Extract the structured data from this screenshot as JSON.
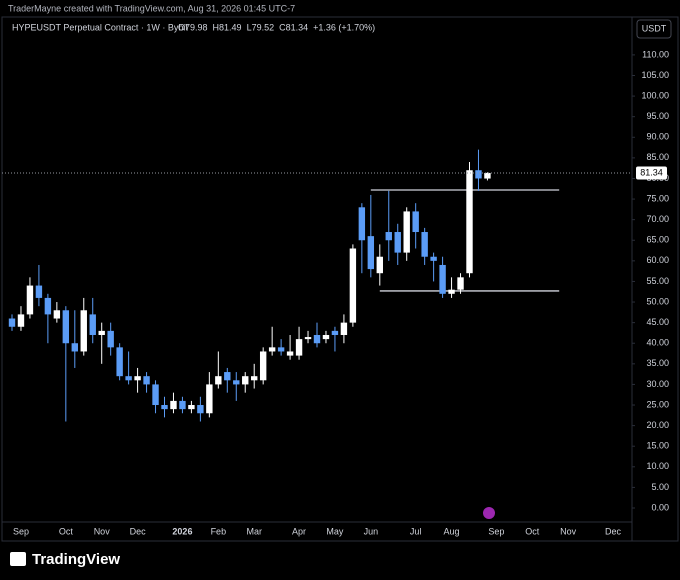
{
  "header": {
    "credit": "TraderMayne created with TradingView.com, Aug 31, 2026 01:45 UTC-7",
    "brand": "TradingView"
  },
  "chart_data": {
    "type": "candlestick",
    "title": "HYPEUSDT Perpetual Contract · 1W · Bybit",
    "ohlc_labels": [
      "O79.98",
      "H81.49",
      "L79.52",
      "C81.34",
      "+1.36 (+1.70%)"
    ],
    "currency": "USDT",
    "last_price": 81.34,
    "categories": [
      null,
      "Sep",
      null,
      null,
      null,
      null,
      "Oct",
      null,
      null,
      null,
      "Nov",
      null,
      null,
      null,
      "Dec",
      null,
      null,
      null,
      null,
      "2026",
      null,
      null,
      null,
      "Feb",
      null,
      null,
      null,
      "Mar",
      null,
      null,
      null,
      null,
      "Apr",
      null,
      null,
      null,
      "May",
      null,
      null,
      null,
      "Jun",
      null,
      null,
      null,
      null,
      "Jul",
      null,
      null,
      null,
      "Aug",
      null,
      null,
      null,
      null,
      "Sep",
      null,
      null,
      null,
      "Oct",
      null,
      null,
      null,
      "Nov",
      null,
      null,
      null,
      null,
      "Dec",
      null
    ],
    "open": [
      46,
      44,
      47,
      54,
      51,
      46,
      48,
      40,
      38,
      47,
      42,
      43,
      39,
      32,
      31,
      32,
      30,
      25,
      24,
      26,
      24,
      25,
      23,
      30,
      33,
      31,
      30,
      31,
      31,
      38,
      39,
      37,
      37,
      41,
      42,
      41,
      43,
      42,
      45,
      73,
      66,
      57,
      67,
      67,
      62,
      72,
      67,
      61,
      59,
      52,
      53,
      57,
      82,
      79.98,
      null,
      null,
      null,
      null,
      null,
      null,
      null,
      null,
      null,
      null,
      null,
      null,
      null,
      null,
      null
    ],
    "high": [
      47,
      49,
      56,
      59,
      52,
      50,
      49,
      48,
      51,
      51,
      45,
      45,
      40,
      38,
      34,
      33,
      31,
      27,
      28,
      27,
      26,
      27,
      33,
      38,
      34,
      33,
      33,
      35,
      39,
      44,
      41,
      42,
      44,
      43,
      45,
      43,
      44,
      47,
      64,
      74,
      76,
      64,
      77,
      69,
      73,
      74,
      68,
      62,
      61,
      56,
      57,
      84,
      87,
      81.49,
      null,
      null,
      null,
      null,
      null,
      null,
      null,
      null,
      null,
      null,
      null,
      null,
      null,
      null,
      null
    ],
    "low": [
      43,
      43,
      46,
      49,
      40,
      45,
      21,
      34,
      37,
      40,
      35,
      37,
      31,
      30,
      28,
      28,
      23,
      22,
      23,
      23,
      23,
      21,
      22,
      29,
      28,
      26,
      28,
      29,
      30,
      37,
      37,
      36,
      36,
      40,
      39,
      40,
      38,
      40,
      44,
      57,
      56,
      54,
      60,
      59,
      60,
      63,
      59,
      55,
      51,
      51,
      52,
      56,
      77,
      79.52,
      null,
      null,
      null,
      null,
      null,
      null,
      null,
      null,
      null,
      null,
      null,
      null,
      null,
      null,
      null
    ],
    "close": [
      44,
      47,
      54,
      51,
      47,
      48,
      40,
      38,
      48,
      42,
      43,
      39,
      32,
      31,
      32,
      30,
      25,
      24,
      26,
      24,
      25,
      23,
      30,
      32,
      31,
      30,
      32,
      32,
      38,
      39,
      38,
      38,
      41,
      41.5,
      40,
      42,
      42,
      45,
      63,
      65,
      58,
      61,
      65,
      62,
      72,
      67,
      61,
      60,
      52,
      53,
      56,
      82,
      80,
      81.34,
      null,
      null,
      null,
      null,
      null,
      null,
      null,
      null,
      null,
      null,
      null,
      null,
      null,
      null,
      null
    ],
    "up_color": "#ffffff",
    "down_color": "#5b9cf6",
    "levels": [
      {
        "value": 77.2,
        "start": 40,
        "end": 61
      },
      {
        "value": 52.7,
        "start": 41,
        "end": 61
      }
    ],
    "ylim": [
      -3.4,
      119.2
    ],
    "yticks": [
      {
        "value": 0,
        "label": "0.00"
      },
      {
        "value": 5,
        "label": "5.00"
      },
      {
        "value": 10,
        "label": "10.00"
      },
      {
        "value": 15,
        "label": "15.00"
      },
      {
        "value": 20,
        "label": "20.00"
      },
      {
        "value": 25,
        "label": "25.00"
      },
      {
        "value": 30,
        "label": "30.00"
      },
      {
        "value": 35,
        "label": "35.00"
      },
      {
        "value": 40,
        "label": "40.00"
      },
      {
        "value": 45,
        "label": "45.00"
      },
      {
        "value": 50,
        "label": "50.00"
      },
      {
        "value": 55,
        "label": "55.00"
      },
      {
        "value": 60,
        "label": "60.00"
      },
      {
        "value": 65,
        "label": "65.00"
      },
      {
        "value": 70,
        "label": "70.00"
      },
      {
        "value": 75,
        "label": "75.00"
      },
      {
        "value": 80,
        "label": "80.00"
      },
      {
        "value": 85,
        "label": "85.00"
      },
      {
        "value": 90,
        "label": "90.00"
      },
      {
        "value": 95,
        "label": "95.00"
      },
      {
        "value": 100,
        "label": "100.00"
      },
      {
        "value": 105,
        "label": "105.00"
      },
      {
        "value": 110,
        "label": "110.00"
      }
    ],
    "grid": false
  }
}
